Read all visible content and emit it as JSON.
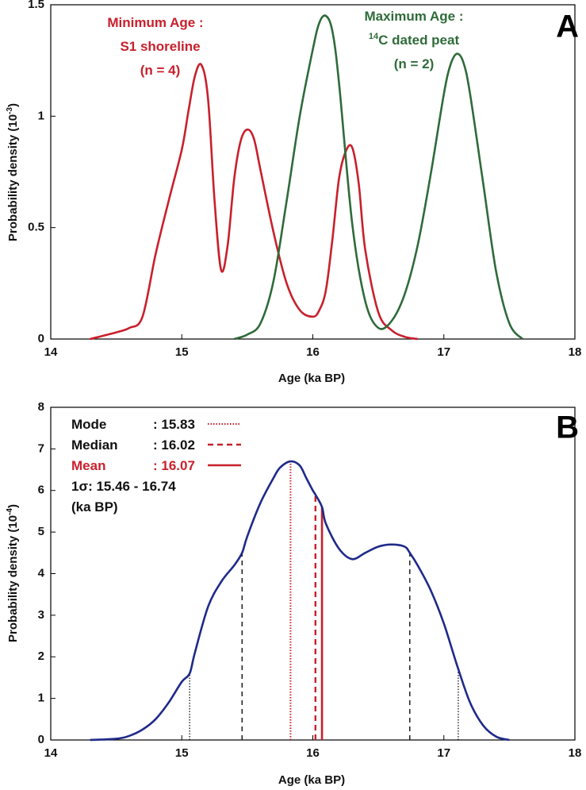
{
  "chart_data": [
    {
      "type": "line",
      "panel": "A",
      "xlabel": "Age (ka BP)",
      "ylabel": "Probability density (10",
      "ylabel_exponent": "-3",
      "ylabel_close": ")",
      "xlim": [
        14,
        18
      ],
      "ylim": [
        0,
        1.5
      ],
      "xticks": [
        14,
        15,
        16,
        17,
        18
      ],
      "yticks": [
        0,
        0.5,
        1,
        1.5
      ],
      "ytick_labels": [
        "0",
        "0.5",
        "1",
        "1.5"
      ],
      "grid": false,
      "series": [
        {
          "name": "Minimum Age : S1 shoreline (n = 4)",
          "color": "#c8202c",
          "x": [
            14.3,
            14.5,
            14.6,
            14.7,
            14.8,
            14.9,
            15.0,
            15.05,
            15.1,
            15.15,
            15.2,
            15.25,
            15.3,
            15.35,
            15.4,
            15.45,
            15.5,
            15.55,
            15.6,
            15.7,
            15.8,
            15.9,
            16.0,
            16.05,
            16.1,
            16.15,
            16.2,
            16.25,
            16.3,
            16.35,
            16.4,
            16.5,
            16.6,
            16.7,
            16.8
          ],
          "y": [
            0.0,
            0.03,
            0.05,
            0.1,
            0.38,
            0.62,
            0.85,
            1.02,
            1.18,
            1.23,
            1.08,
            0.62,
            0.31,
            0.42,
            0.72,
            0.89,
            0.94,
            0.9,
            0.76,
            0.48,
            0.25,
            0.13,
            0.1,
            0.13,
            0.22,
            0.45,
            0.72,
            0.84,
            0.86,
            0.7,
            0.4,
            0.12,
            0.04,
            0.01,
            0.0
          ]
        },
        {
          "name": "Maximum Age : 14C dated peat (n = 2)",
          "color": "#2f6b3a",
          "x": [
            15.4,
            15.5,
            15.6,
            15.7,
            15.8,
            15.9,
            16.0,
            16.05,
            16.1,
            16.15,
            16.2,
            16.3,
            16.4,
            16.5,
            16.6,
            16.7,
            16.8,
            16.9,
            17.0,
            17.05,
            17.1,
            17.15,
            17.2,
            17.3,
            17.4,
            17.5,
            17.6
          ],
          "y": [
            0.0,
            0.02,
            0.07,
            0.26,
            0.62,
            1.0,
            1.3,
            1.42,
            1.45,
            1.38,
            1.15,
            0.52,
            0.17,
            0.05,
            0.08,
            0.2,
            0.42,
            0.74,
            1.1,
            1.23,
            1.28,
            1.24,
            1.1,
            0.7,
            0.3,
            0.07,
            0.0
          ]
        }
      ],
      "annotations": {
        "panel_letter": "A",
        "min_line1": "Minimum Age :",
        "min_line2": "S1 shoreline",
        "min_line3": "(n = 4)",
        "max_line1": "Maximum Age :",
        "max_line2_sup": "14",
        "max_line2_rest": "C dated peat",
        "max_line3": "(n = 2)"
      }
    },
    {
      "type": "line",
      "panel": "B",
      "xlabel": "Age (ka BP)",
      "ylabel": "Probability density (10",
      "ylabel_exponent": "-4",
      "ylabel_close": ")",
      "xlim": [
        14,
        18
      ],
      "ylim": [
        0,
        8
      ],
      "xticks": [
        14,
        15,
        16,
        17,
        18
      ],
      "yticks": [
        0,
        1,
        2,
        3,
        4,
        5,
        6,
        7,
        8
      ],
      "grid": false,
      "series": [
        {
          "name": "",
          "color": "#1f2a8a",
          "x": [
            14.3,
            14.5,
            14.6,
            14.7,
            14.8,
            14.9,
            15.0,
            15.06,
            15.1,
            15.2,
            15.3,
            15.4,
            15.46,
            15.5,
            15.6,
            15.7,
            15.75,
            15.83,
            15.9,
            15.95,
            16.0,
            16.02,
            16.07,
            16.1,
            16.2,
            16.3,
            16.4,
            16.5,
            16.6,
            16.7,
            16.74,
            16.8,
            16.9,
            17.0,
            17.1,
            17.2,
            17.3,
            17.4,
            17.5
          ],
          "y": [
            0.0,
            0.03,
            0.1,
            0.25,
            0.5,
            0.9,
            1.4,
            1.6,
            2.1,
            3.2,
            3.8,
            4.2,
            4.5,
            4.9,
            5.7,
            6.3,
            6.55,
            6.7,
            6.6,
            6.3,
            6.0,
            5.9,
            5.6,
            5.2,
            4.6,
            4.35,
            4.5,
            4.65,
            4.7,
            4.65,
            4.5,
            4.2,
            3.6,
            2.8,
            1.8,
            0.9,
            0.35,
            0.08,
            0.0
          ]
        }
      ],
      "markers": {
        "mode": 15.83,
        "median": 16.02,
        "mean": 16.07,
        "sigma1": [
          15.46,
          16.74
        ],
        "sigma2": [
          15.06,
          17.11
        ]
      },
      "legend": {
        "panel_letter": "B",
        "mode_label": "Mode",
        "mode_value": ": 15.83",
        "median_label": "Median",
        "median_value": ": 16.02",
        "mean_label": "Mean",
        "mean_value": ": 16.07",
        "sigma_text": "1σ: 15.46 - 16.74",
        "unit_text": "(ka BP)"
      },
      "colors": {
        "curve": "#1f2a8a",
        "mode_mean": "#c8202c",
        "sigma": "#111111"
      }
    }
  ]
}
